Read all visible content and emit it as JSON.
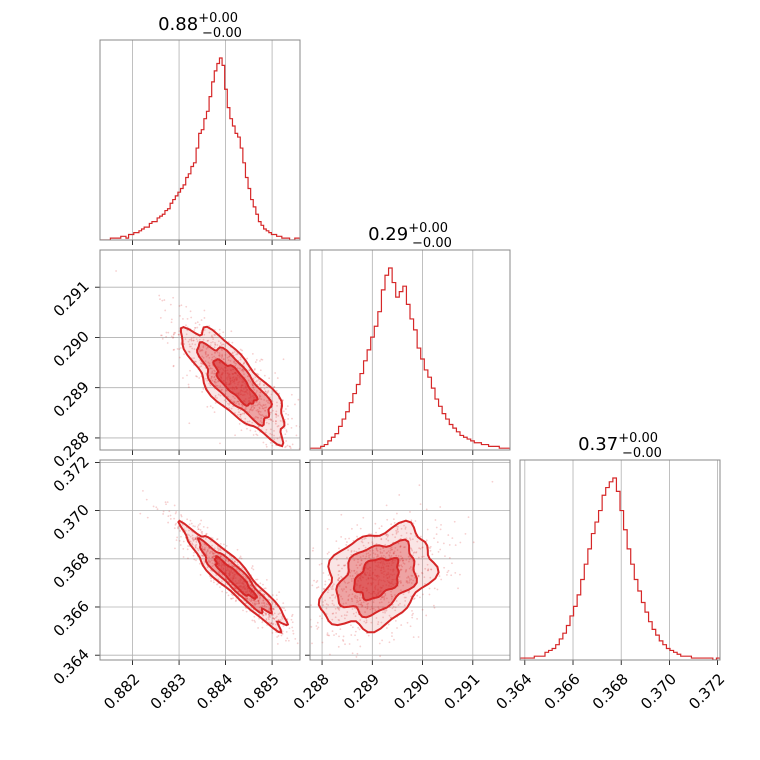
{
  "chart_data": {
    "type": "scatter",
    "kind": "corner-plot",
    "color": "#d62728",
    "grid": true,
    "parameters": [
      {
        "id": "p0",
        "title_value": "0.88",
        "title_upper": "+0.00",
        "title_lower": "−0.00",
        "range": [
          0.8813,
          0.8856
        ],
        "ticks": [
          0.882,
          0.883,
          0.884,
          0.885
        ],
        "tick_labels": [
          "0.882",
          "0.883",
          "0.884",
          "0.885"
        ],
        "histogram": {
          "start": 0.8813,
          "end": 0.8856,
          "counts": [
            0,
            0,
            0,
            0,
            1,
            1,
            1,
            1,
            2,
            2,
            1,
            3,
            3,
            4,
            4,
            5,
            6,
            7,
            7,
            9,
            10,
            10,
            12,
            13,
            14,
            16,
            17,
            20,
            22,
            24,
            26,
            28,
            30,
            34,
            36,
            40,
            42,
            50,
            58,
            60,
            66,
            70,
            78,
            86,
            92,
            96,
            99,
            95,
            82,
            72,
            66,
            62,
            58,
            56,
            50,
            42,
            34,
            28,
            22,
            18,
            14,
            10,
            8,
            6,
            5,
            4,
            3,
            3,
            2,
            2,
            1,
            1,
            1,
            0,
            0,
            1,
            1
          ]
        }
      },
      {
        "id": "p1",
        "title_value": "0.29",
        "title_upper": "+0.00",
        "title_lower": "−0.00",
        "range": [
          0.28776,
          0.29174
        ],
        "ticks": [
          0.288,
          0.289,
          0.29,
          0.291
        ],
        "tick_labels": [
          "0.288",
          "0.289",
          "0.290",
          "0.291"
        ],
        "histogram": {
          "start": 0.28776,
          "end": 0.29174,
          "counts": [
            1,
            1,
            1,
            2,
            3,
            5,
            7,
            9,
            13,
            17,
            21,
            26,
            31,
            36,
            42,
            49,
            55,
            62,
            68,
            76,
            88,
            96,
            100,
            92,
            84,
            87,
            90,
            80,
            72,
            66,
            56,
            50,
            44,
            40,
            34,
            28,
            24,
            20,
            17,
            14,
            12,
            10,
            8,
            7,
            6,
            5,
            4,
            4,
            3,
            3,
            2,
            2,
            2,
            1,
            1,
            1
          ]
        }
      },
      {
        "id": "p2",
        "title_value": "0.37",
        "title_upper": "+0.00",
        "title_lower": "−0.00",
        "range": [
          0.3638,
          0.3721
        ],
        "ticks": [
          0.364,
          0.366,
          0.368,
          0.37,
          0.372
        ],
        "tick_labels": [
          "0.364",
          "0.366",
          "0.368",
          "0.370",
          "0.372"
        ],
        "histogram": {
          "start": 0.3638,
          "end": 0.3721,
          "counts": [
            1,
            1,
            1,
            1,
            2,
            2,
            2,
            4,
            5,
            6,
            8,
            11,
            14,
            18,
            23,
            28,
            34,
            42,
            50,
            58,
            66,
            72,
            78,
            86,
            90,
            93,
            95,
            88,
            78,
            68,
            58,
            50,
            42,
            36,
            30,
            25,
            20,
            16,
            13,
            10,
            8,
            6,
            5,
            4,
            3,
            2,
            2,
            2,
            1,
            1,
            1,
            1,
            1,
            1,
            0,
            1
          ]
        }
      }
    ],
    "pairs": [
      {
        "x": "p0",
        "y": "p1",
        "mean": [
          0.8842,
          0.2891
        ],
        "sd": [
          0.00055,
          0.00055
        ],
        "corr": -0.8
      },
      {
        "x": "p0",
        "y": "p2",
        "mean": [
          0.8842,
          0.3672
        ],
        "sd": [
          0.00055,
          0.00105
        ],
        "corr": -0.93
      },
      {
        "x": "p1",
        "y": "p2",
        "mean": [
          0.2891,
          0.3672
        ],
        "sd": [
          0.00055,
          0.00105
        ],
        "corr": 0.35
      }
    ],
    "contour_levels": [
      0.39,
      0.86,
      1.0
    ]
  }
}
